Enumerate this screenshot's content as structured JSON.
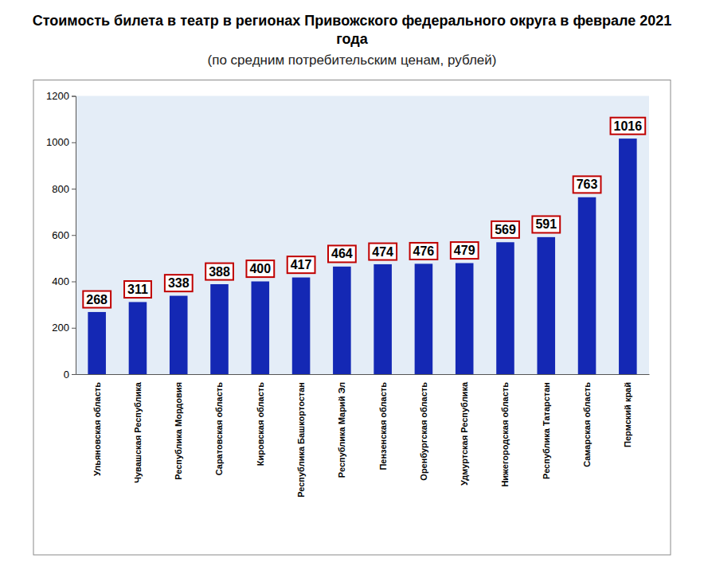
{
  "chart_data": {
    "type": "bar",
    "title": "Стоимость билета в театр в регионах Привожского федерального округа в феврале 2021 года",
    "subtitle": "(по средним потребительским ценам, рублей)",
    "categories": [
      "Ульяновская область",
      "Чувашская Республика",
      "Республика Мордовия",
      "Саратовская область",
      "Кировская область",
      "Республика Башкортостан",
      "Республика Марий Эл",
      "Пензенская область",
      "Оренбургская область",
      "Удмуртская Республика",
      "Нижегородская область",
      "Республика Татарстан",
      "Самарская область",
      "Пермский край"
    ],
    "values": [
      268,
      311,
      338,
      388,
      400,
      417,
      464,
      474,
      476,
      479,
      569,
      591,
      763,
      1016
    ],
    "color": "#1428b4",
    "ylim": [
      0,
      1200
    ],
    "yticks": [
      0,
      200,
      400,
      600,
      800,
      1000,
      1200
    ],
    "grid": false,
    "data_labels": true
  }
}
